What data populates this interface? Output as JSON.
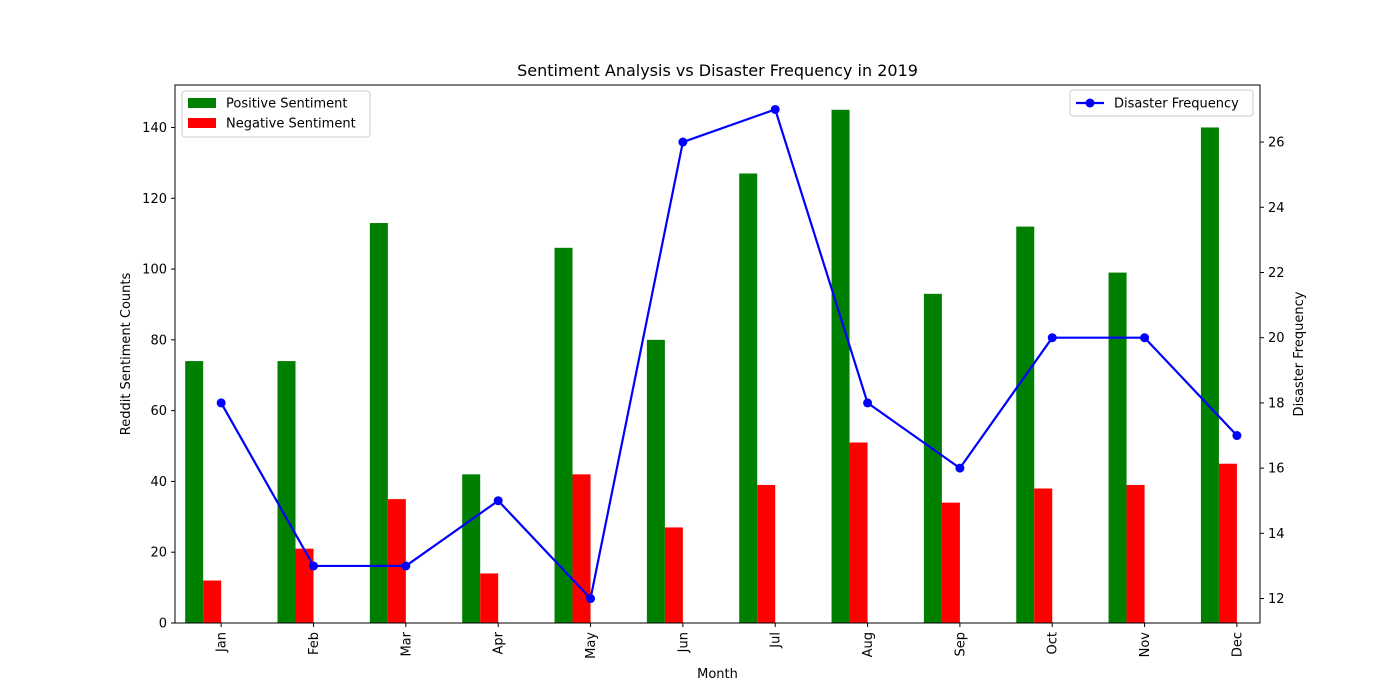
{
  "chart_data": {
    "type": "bar+line",
    "title": "Sentiment Analysis vs Disaster Frequency in 2019",
    "xlabel": "Month",
    "ylabel_left": "Reddit Sentiment Counts",
    "ylabel_right": "Disaster Frequency",
    "categories": [
      "Jan",
      "Feb",
      "Mar",
      "Apr",
      "May",
      "Jun",
      "Jul",
      "Aug",
      "Sep",
      "Oct",
      "Nov",
      "Dec"
    ],
    "bar_series": [
      {
        "name": "Positive Sentiment",
        "color": "#008000",
        "values": [
          74,
          74,
          113,
          42,
          106,
          80,
          127,
          145,
          93,
          112,
          99,
          140
        ]
      },
      {
        "name": "Negative Sentiment",
        "color": "#ff0000",
        "values": [
          12,
          21,
          35,
          14,
          42,
          27,
          39,
          51,
          34,
          38,
          39,
          45
        ]
      }
    ],
    "line_series": [
      {
        "name": "Disaster Frequency",
        "color": "#0000ff",
        "values": [
          18,
          13,
          13,
          15,
          12,
          26,
          27,
          18,
          16,
          20,
          20,
          17
        ]
      }
    ],
    "ylim_left": [
      0,
      152
    ],
    "yticks_left": [
      0,
      20,
      40,
      60,
      80,
      100,
      120,
      140
    ],
    "ylim_right": [
      11.25,
      27.75
    ],
    "yticks_right": [
      12,
      14,
      16,
      18,
      20,
      22,
      24,
      26
    ],
    "xtick_rotation": 90,
    "grid": false,
    "legend_bars": "upper left",
    "legend_line": "upper right"
  }
}
